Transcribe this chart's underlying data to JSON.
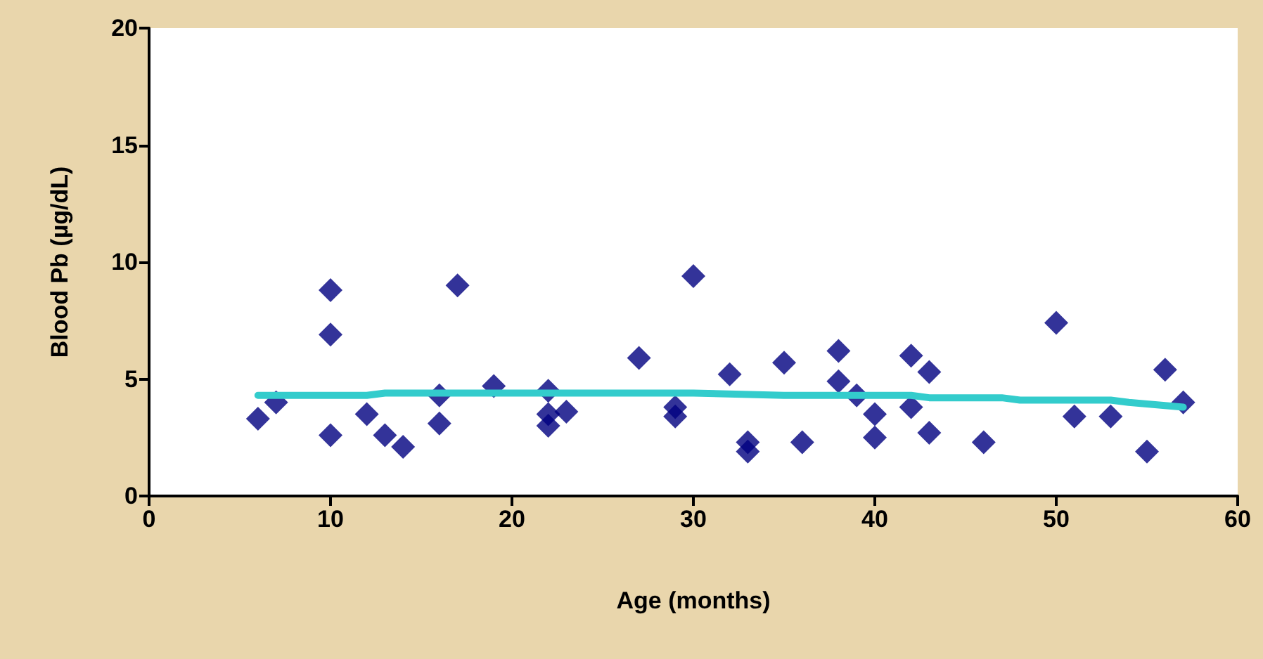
{
  "chart_data": {
    "type": "scatter",
    "xlabel": "Age (months)",
    "ylabel": "Blood Pb (µg/dL)",
    "xlim": [
      0,
      60
    ],
    "xticks": [
      0,
      10,
      20,
      30,
      40,
      50,
      60
    ],
    "ylim": [
      0,
      20
    ],
    "yticks": [
      0,
      5,
      10,
      15,
      20
    ],
    "grid": false,
    "marker": "diamond",
    "series": [
      {
        "color": "#000080",
        "x": [
          6,
          7,
          10,
          10,
          10,
          12,
          13,
          14,
          16,
          16,
          17,
          19,
          22,
          22,
          22,
          23,
          27,
          29,
          29,
          30,
          32,
          33,
          33,
          35,
          36,
          38,
          38,
          39,
          40,
          40,
          42,
          42,
          43,
          43,
          46,
          50,
          51,
          53,
          55,
          56,
          57
        ],
        "values": [
          3.3,
          4.0,
          8.8,
          6.9,
          2.6,
          3.5,
          2.6,
          2.1,
          3.1,
          4.3,
          9.0,
          4.7,
          4.5,
          3.5,
          3.0,
          3.6,
          5.9,
          3.8,
          3.4,
          9.4,
          5.2,
          2.3,
          1.9,
          5.7,
          2.3,
          6.2,
          4.9,
          4.3,
          3.5,
          2.5,
          6.0,
          3.8,
          5.3,
          2.7,
          2.3,
          7.4,
          3.4,
          3.4,
          1.9,
          5.4,
          4.0
        ]
      },
      {
        "type": "line",
        "color": "#33cccc",
        "marker": "none",
        "line_style": "solid",
        "x": [
          6,
          12,
          13,
          30,
          35,
          42,
          43,
          47,
          48,
          53,
          54,
          57
        ],
        "values": [
          4.3,
          4.3,
          4.4,
          4.4,
          4.3,
          4.3,
          4.2,
          4.2,
          4.1,
          4.1,
          4.0,
          3.8
        ]
      }
    ]
  }
}
